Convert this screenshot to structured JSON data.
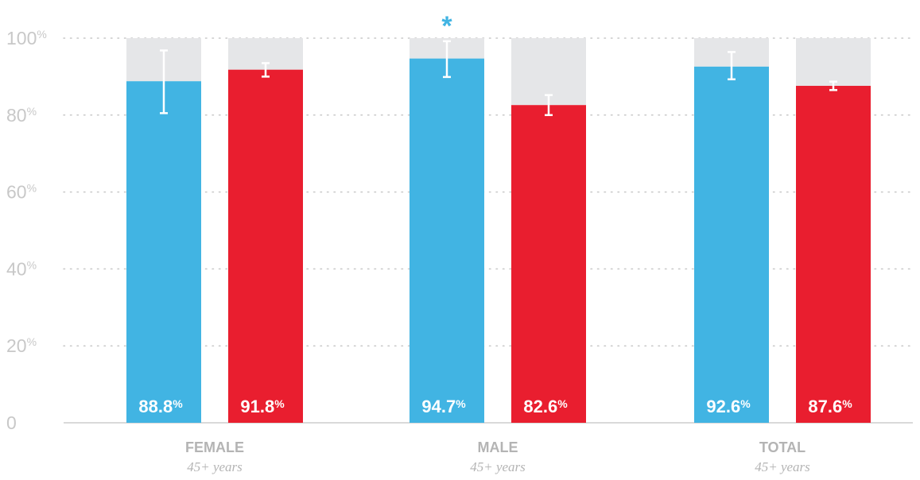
{
  "colors": {
    "blue": "#41b4e3",
    "red": "#e91e2f",
    "remainder": "#e5e6e8",
    "grid": "#c8c8c8",
    "axis": "#d9d9d9",
    "error_bar": "#ffffff"
  },
  "chart_data": {
    "type": "bar",
    "ylim": [
      0,
      100
    ],
    "grid": true,
    "yticks": [
      {
        "value": 0,
        "label": "0",
        "pct": ""
      },
      {
        "value": 20,
        "label": "20",
        "pct": "%"
      },
      {
        "value": 40,
        "label": "40",
        "pct": "%"
      },
      {
        "value": 60,
        "label": "60",
        "pct": "%"
      },
      {
        "value": 80,
        "label": "80",
        "pct": "%"
      },
      {
        "value": 100,
        "label": "100",
        "pct": "%"
      }
    ],
    "categories": [
      {
        "label": "FEMALE",
        "sublabel": "45+ years",
        "significant": false
      },
      {
        "label": "MALE",
        "sublabel": "45+ years",
        "significant": true
      },
      {
        "label": "TOTAL",
        "sublabel": "45+ years",
        "significant": false
      }
    ],
    "significance_marker": "*",
    "series": [
      {
        "color": "#41b4e3",
        "values": [
          88.8,
          94.7,
          92.6
        ],
        "value_labels": [
          "88.8",
          "94.7",
          "92.6"
        ],
        "error_low": [
          80.5,
          89.9,
          89.3
        ],
        "error_high": [
          96.8,
          99.2,
          96.4
        ]
      },
      {
        "color": "#e91e2f",
        "values": [
          91.8,
          82.6,
          87.6
        ],
        "value_labels": [
          "91.8",
          "82.6",
          "87.6"
        ],
        "error_low": [
          90.0,
          80.0,
          86.5
        ],
        "error_high": [
          93.5,
          85.2,
          88.7
        ]
      }
    ],
    "value_suffix": "%"
  }
}
